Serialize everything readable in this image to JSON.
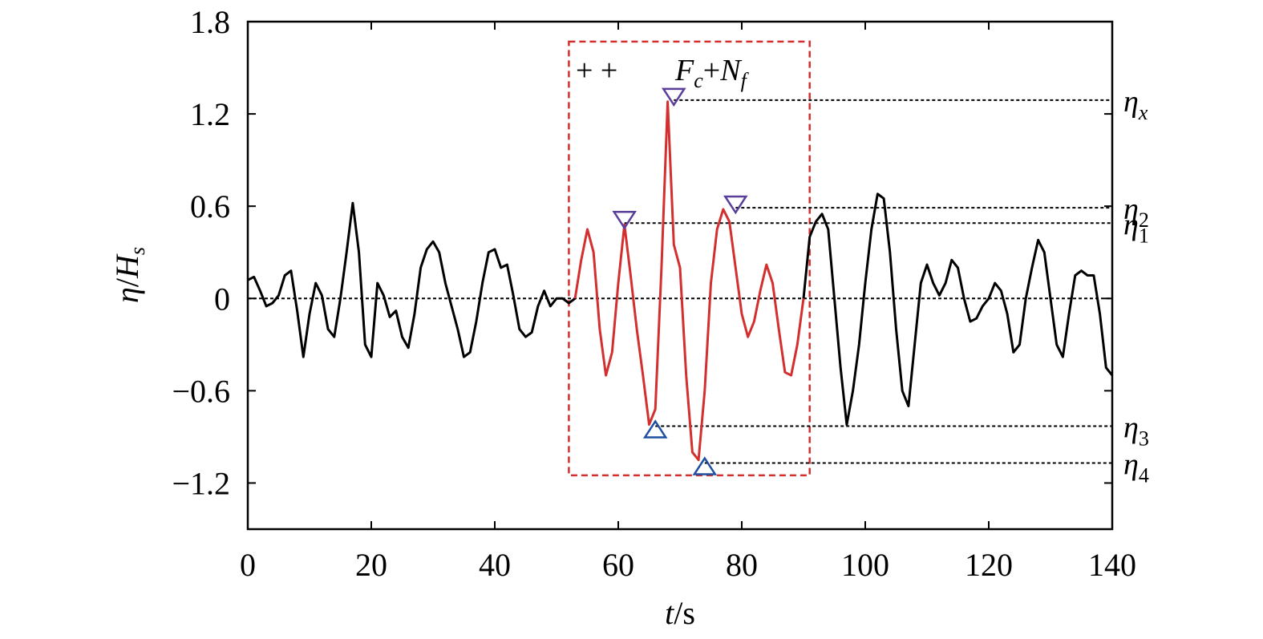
{
  "chart_data": {
    "type": "line",
    "xlabel": {
      "var": "t",
      "unit": "/s"
    },
    "ylabel": {
      "var": "η",
      "sep": "/",
      "den": "H",
      "den_sub": "s"
    },
    "xlim": [
      0,
      140
    ],
    "ylim": [
      -1.5,
      1.8
    ],
    "xticks": [
      0,
      20,
      40,
      60,
      80,
      100,
      120,
      140
    ],
    "xtick_labels": [
      "0",
      "20",
      "40",
      "60",
      "80",
      "100",
      "120",
      "140"
    ],
    "yticks": [
      -1.2,
      -0.6,
      0,
      0.6,
      1.2,
      1.8
    ],
    "ytick_labels": [
      "−1.2",
      "−0.6",
      "0",
      "0.6",
      "1.2",
      "1.8"
    ],
    "grid": false,
    "colors": {
      "series_main": "#000000",
      "series_highlight": "#d32f2f",
      "box": "#d32f2f",
      "marker_max": "#5a3f9a",
      "marker_min": "#1f4fa0"
    },
    "series": [
      {
        "x": [
          0,
          1,
          2,
          3,
          4,
          5,
          6,
          7,
          8,
          9,
          10,
          11,
          12,
          13,
          14,
          15,
          16,
          17,
          18,
          19,
          20,
          21,
          22,
          23,
          24,
          25,
          26,
          27,
          28,
          29,
          30,
          31,
          32,
          33,
          34,
          35,
          36,
          37,
          38,
          39,
          40,
          41,
          42,
          43,
          44,
          45,
          46,
          47,
          48,
          49,
          50,
          51,
          52,
          53
        ],
        "y": [
          0.12,
          0.14,
          0.05,
          -0.05,
          -0.03,
          0.02,
          0.15,
          0.18,
          -0.08,
          -0.38,
          -0.1,
          0.1,
          0.02,
          -0.2,
          -0.25,
          0.0,
          0.3,
          0.62,
          0.3,
          -0.3,
          -0.38,
          0.1,
          0.02,
          -0.12,
          -0.08,
          -0.25,
          -0.32,
          -0.1,
          0.2,
          0.32,
          0.37,
          0.3,
          0.1,
          -0.05,
          -0.2,
          -0.38,
          -0.35,
          -0.15,
          0.1,
          0.3,
          0.32,
          0.2,
          0.22,
          0.02,
          -0.2,
          -0.25,
          -0.22,
          -0.05,
          0.05,
          -0.05,
          0.0,
          0.0,
          -0.03,
          0.0
        ]
      },
      {
        "x": [
          53,
          54,
          55,
          56,
          57,
          58,
          59,
          60,
          61,
          62,
          63,
          64,
          65,
          66,
          67,
          68,
          69,
          70,
          71,
          72,
          73,
          74,
          75,
          76,
          77,
          78,
          79,
          80,
          81,
          82,
          83,
          84,
          85,
          86,
          87,
          88,
          89,
          90
        ],
        "y": [
          0.0,
          0.25,
          0.45,
          0.3,
          -0.2,
          -0.5,
          -0.35,
          0.1,
          0.48,
          0.15,
          -0.2,
          -0.5,
          -0.82,
          -0.72,
          0.2,
          1.28,
          0.35,
          0.2,
          -0.5,
          -1.0,
          -1.05,
          -0.6,
          0.1,
          0.45,
          0.58,
          0.5,
          0.2,
          -0.1,
          -0.25,
          -0.15,
          0.05,
          0.22,
          0.1,
          -0.2,
          -0.48,
          -0.5,
          -0.3,
          0.0
        ]
      },
      {
        "x": [
          90,
          91,
          92,
          93,
          94,
          95,
          96,
          97,
          98,
          99,
          100,
          101,
          102,
          103,
          104,
          105,
          106,
          107,
          108,
          109,
          110,
          111,
          112,
          113,
          114,
          115,
          116,
          117,
          118,
          119,
          120,
          121,
          122,
          123,
          124,
          125,
          126,
          127,
          128,
          129,
          130,
          131,
          132,
          133,
          134,
          135,
          136,
          137,
          138,
          139,
          140
        ],
        "y": [
          0.0,
          0.4,
          0.5,
          0.55,
          0.45,
          0.0,
          -0.45,
          -0.82,
          -0.6,
          -0.3,
          0.1,
          0.45,
          0.68,
          0.65,
          0.3,
          -0.2,
          -0.6,
          -0.7,
          -0.3,
          0.1,
          0.22,
          0.1,
          0.02,
          0.1,
          0.25,
          0.2,
          0.0,
          -0.15,
          -0.13,
          -0.05,
          0.0,
          0.1,
          0.05,
          -0.1,
          -0.35,
          -0.3,
          0.0,
          0.2,
          0.38,
          0.3,
          0.0,
          -0.3,
          -0.38,
          -0.1,
          0.15,
          0.18,
          0.15,
          0.15,
          -0.1,
          -0.45,
          -0.5
        ]
      }
    ],
    "reference_lines": [
      {
        "name": "zero",
        "y": 0.0,
        "x_start": 0,
        "x_end": 140,
        "label": ""
      },
      {
        "name": "eta-x",
        "y": 1.29,
        "x_start": 69,
        "x_end": 140,
        "label": "η",
        "label_sub": "x"
      },
      {
        "name": "eta-2",
        "y": 0.59,
        "x_start": 79,
        "x_end": 140,
        "label": "η",
        "label_sub": "2"
      },
      {
        "name": "eta-1",
        "y": 0.49,
        "x_start": 61,
        "x_end": 140,
        "label": "η",
        "label_sub": "1"
      },
      {
        "name": "eta-3",
        "y": -0.83,
        "x_start": 66,
        "x_end": 140,
        "label": "η",
        "label_sub": "3"
      },
      {
        "name": "eta-4",
        "y": -1.07,
        "x_start": 74,
        "x_end": 140,
        "label": "η",
        "label_sub": "4"
      }
    ],
    "markers": [
      {
        "name": "max-marker-1",
        "shape": "triangle-down",
        "x": 61,
        "y": 0.49,
        "color": "#5a3f9a"
      },
      {
        "name": "max-marker-x",
        "shape": "triangle-down",
        "x": 69,
        "y": 1.29,
        "color": "#5a3f9a"
      },
      {
        "name": "max-marker-2",
        "shape": "triangle-down",
        "x": 79,
        "y": 0.59,
        "color": "#5a3f9a"
      },
      {
        "name": "min-marker-3",
        "shape": "triangle-up",
        "x": 66,
        "y": -0.83,
        "color": "#1f4fa0"
      },
      {
        "name": "min-marker-4",
        "shape": "triangle-up",
        "x": 74,
        "y": -1.07,
        "color": "#1f4fa0"
      }
    ],
    "highlight_box": {
      "x_range": [
        52,
        91
      ],
      "y_range": [
        -1.15,
        1.67
      ]
    },
    "annotations": {
      "plus_signs": "+ +",
      "label_main": "F",
      "label_main_sub": "c",
      "label_plus": "+",
      "label_second": "N",
      "label_second_sub": "f"
    }
  }
}
